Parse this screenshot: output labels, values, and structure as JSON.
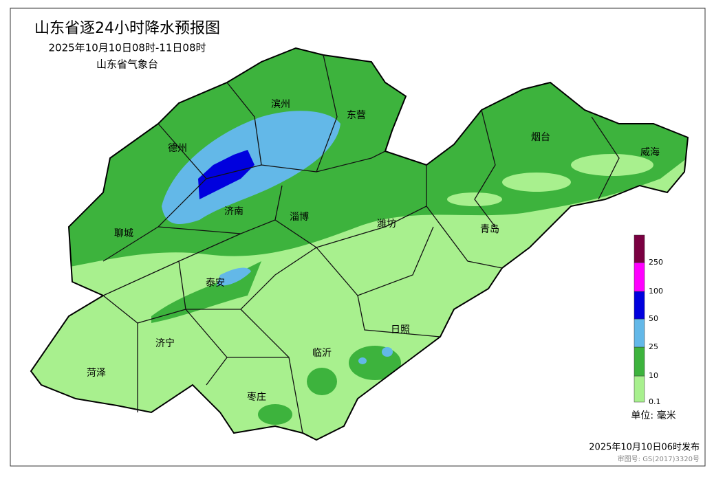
{
  "header": {
    "title": "山东省逐24小时降水预报图",
    "period": "2025年10月10日08时-11日08时",
    "issuer": "山东省气象台"
  },
  "cities": [
    "滨州",
    "东营",
    "德州",
    "烟台",
    "威海",
    "济南",
    "淄博",
    "潍坊",
    "青岛",
    "聊城",
    "泰安",
    "日照",
    "济宁",
    "临沂",
    "菏泽",
    "枣庄"
  ],
  "legend": {
    "labels": [
      "0.1",
      "10",
      "25",
      "50",
      "100",
      "250"
    ],
    "colors": [
      "#a8f08e",
      "#3db33d",
      "#63b8e8",
      "#0000de",
      "#ff00ff",
      "#7a0041"
    ],
    "unit": "单位: 毫米"
  },
  "footer": {
    "issued": "2025年10月10日06时发布",
    "review": "审图号: GS(2017)3320号"
  }
}
